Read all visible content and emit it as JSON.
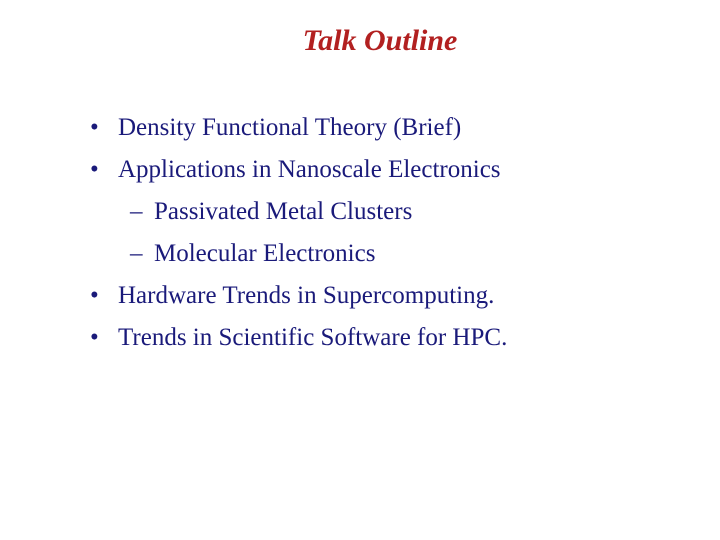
{
  "slide": {
    "title": "Talk Outline",
    "title_color": "#b22020",
    "title_fontsize": 30,
    "body_color": "#1a1a7a",
    "body_fontsize": 25,
    "background_color": "#ffffff",
    "bullet_char": "•",
    "dash_char": "–",
    "items": [
      {
        "type": "bullet",
        "text": "Density Functional Theory (Brief)"
      },
      {
        "type": "bullet",
        "text": "Applications in Nanoscale Electronics"
      },
      {
        "type": "sub",
        "text": "Passivated Metal Clusters"
      },
      {
        "type": "sub",
        "text": "Molecular Electronics"
      },
      {
        "type": "bullet",
        "text": "Hardware Trends in Supercomputing."
      },
      {
        "type": "bullet",
        "text": "Trends in Scientific Software for HPC."
      }
    ]
  }
}
